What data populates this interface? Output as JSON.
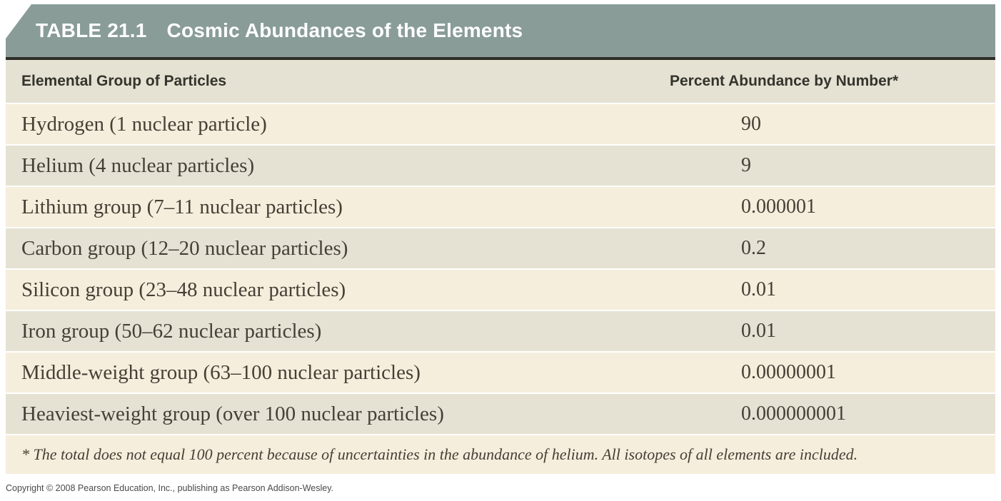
{
  "title": {
    "number": "TABLE 21.1",
    "text": "Cosmic Abundances of the Elements"
  },
  "table": {
    "columns": [
      "Elemental Group of Particles",
      "Percent Abundance by Number*"
    ],
    "rows": [
      {
        "group": "Hydrogen (1 nuclear particle)",
        "abundance": "90"
      },
      {
        "group": "Helium (4 nuclear particles)",
        "abundance": "9"
      },
      {
        "group": "Lithium group (7–11 nuclear particles)",
        "abundance": "0.000001"
      },
      {
        "group": "Carbon group (12–20 nuclear particles)",
        "abundance": "0.2"
      },
      {
        "group": "Silicon group (23–48 nuclear particles)",
        "abundance": "0.01"
      },
      {
        "group": "Iron group (50–62 nuclear particles)",
        "abundance": "0.01"
      },
      {
        "group": "Middle-weight group (63–100 nuclear particles)",
        "abundance": "0.00000001"
      },
      {
        "group": "Heaviest-weight group (over 100 nuclear particles)",
        "abundance": "0.000000001"
      }
    ],
    "footnote": "* The total does not equal 100 percent because of uncertainties in the abundance of helium. All isotopes of all elements are included."
  },
  "copyright": "Copyright © 2008 Pearson Education, Inc., publishing as Pearson Addison-Wesley.",
  "chart_data": {
    "type": "table",
    "title": "TABLE 21.1 Cosmic Abundances of the Elements",
    "columns": [
      "Elemental Group of Particles",
      "Percent Abundance by Number*"
    ],
    "categories": [
      "Hydrogen (1 nuclear particle)",
      "Helium (4 nuclear particles)",
      "Lithium group (7–11 nuclear particles)",
      "Carbon group (12–20 nuclear particles)",
      "Silicon group (23–48 nuclear particles)",
      "Iron group (50–62 nuclear particles)",
      "Middle-weight group (63–100 nuclear particles)",
      "Heaviest-weight group (over 100 nuclear particles)"
    ],
    "values": [
      90,
      9,
      1e-06,
      0.2,
      0.01,
      0.01,
      1e-08,
      1e-09
    ]
  },
  "colors": {
    "header_bar": "#899c98",
    "rule": "#2d2d28",
    "row_shaded": "#e5e2d3",
    "row_cream": "#f5eedd",
    "title_text": "#ffffff",
    "header_text": "#34332c",
    "body_text": "#453f35",
    "copyright_text": "#4a4a4a",
    "page_bg": "#ffffff"
  }
}
